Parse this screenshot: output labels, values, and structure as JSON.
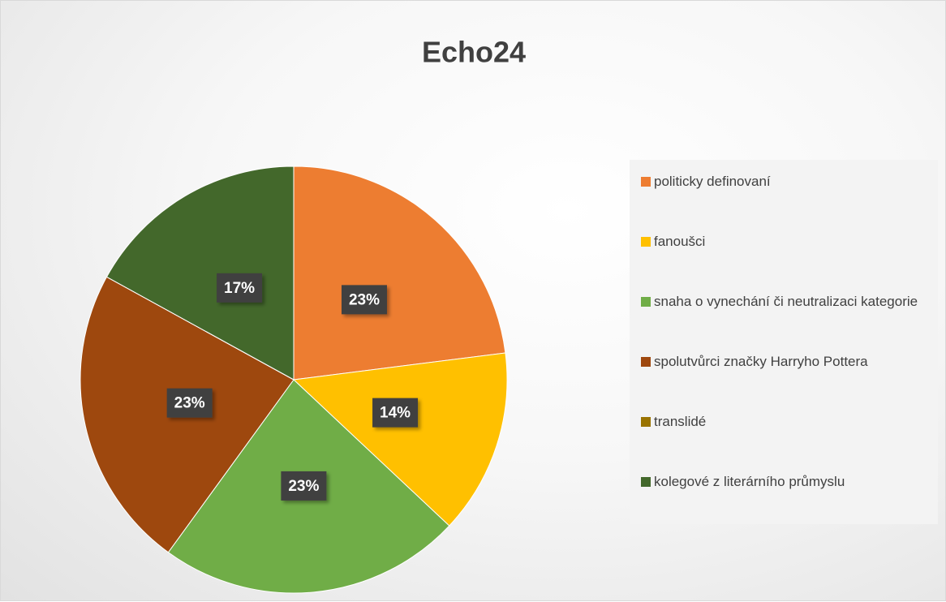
{
  "chart_data": {
    "type": "pie",
    "title": "Echo24",
    "categories": [
      "politicky definovaní",
      "fanoušci",
      "snaha o vynechání či neutralizaci kategorie",
      "spolutvůrci značky Harryho Pottera",
      "translidé",
      "kolegové z literárního průmyslu"
    ],
    "values": [
      23,
      14,
      23,
      23,
      0,
      17
    ],
    "value_labels": [
      "23%",
      "14%",
      "23%",
      "23%",
      null,
      "17%"
    ],
    "colors": [
      "#ED7D31",
      "#FFC000",
      "#70AD47",
      "#9E480E",
      "#997300",
      "#43682B"
    ],
    "legend": "right"
  }
}
